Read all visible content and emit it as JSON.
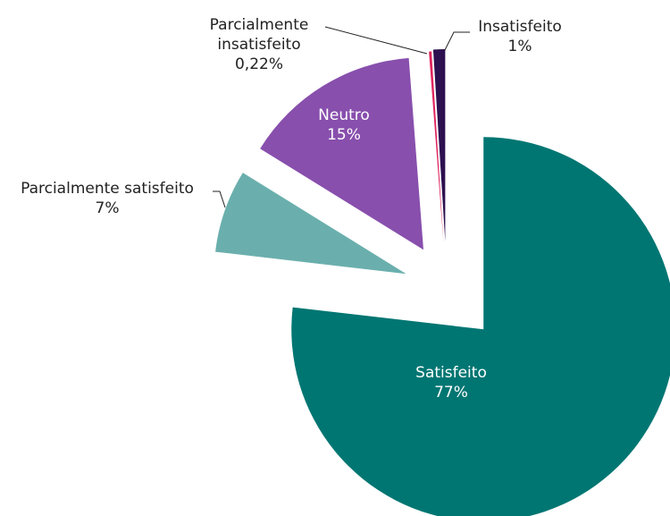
{
  "chart_data": {
    "type": "pie",
    "categories": [
      "Satisfeito",
      "Parcialmente satisfeito",
      "Neutro",
      "Parcialmente insatisfeito",
      "Insatisfeito"
    ],
    "values": [
      77,
      7,
      15,
      0.22,
      1
    ],
    "value_labels": [
      "77%",
      "7%",
      "15%",
      "0,22%",
      "1%"
    ],
    "colors": [
      "#007672",
      "#6aafad",
      "#884fad",
      "#e0245e",
      "#2d1050"
    ]
  }
}
